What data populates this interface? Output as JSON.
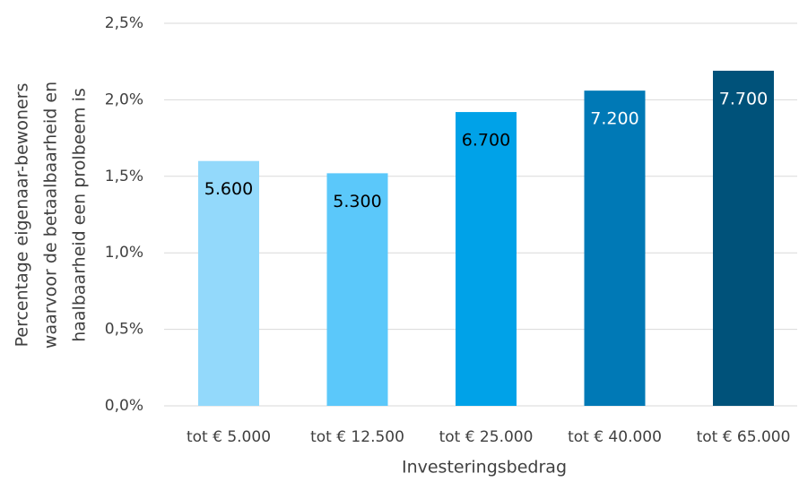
{
  "chart_data": {
    "type": "bar",
    "categories": [
      "tot € 5.000",
      "tot € 12.500",
      "tot € 25.000",
      "tot € 40.000",
      "tot € 65.000"
    ],
    "values": [
      1.6,
      1.52,
      1.92,
      2.06,
      2.19
    ],
    "annotations": [
      "5.600",
      "5.300",
      "6.700",
      "7.200",
      "7.700"
    ],
    "colors": [
      "#93d9fb",
      "#5bc8fa",
      "#00a2e8",
      "#0079b6",
      "#00527a"
    ],
    "annotation_colors": [
      "#000000",
      "#000000",
      "#000000",
      "#ffffff",
      "#ffffff"
    ],
    "x_label": "Investeringsbedrag",
    "y_label": [
      "Percentage eigenaar-bewoners",
      "waarvoor de betaalbaarheid en",
      "haalbaarheid een prolbeem is"
    ],
    "ylim": [
      0,
      2.5
    ],
    "yticks": [
      {
        "value": 0,
        "label": "0,0%"
      },
      {
        "value": 0.5,
        "label": "0,5%"
      },
      {
        "value": 1,
        "label": "1,0%"
      },
      {
        "value": 1.5,
        "label": "1,5%"
      },
      {
        "value": 2,
        "label": "2,0%"
      },
      {
        "value": 2.5,
        "label": "2,5%"
      }
    ],
    "grid": true
  }
}
